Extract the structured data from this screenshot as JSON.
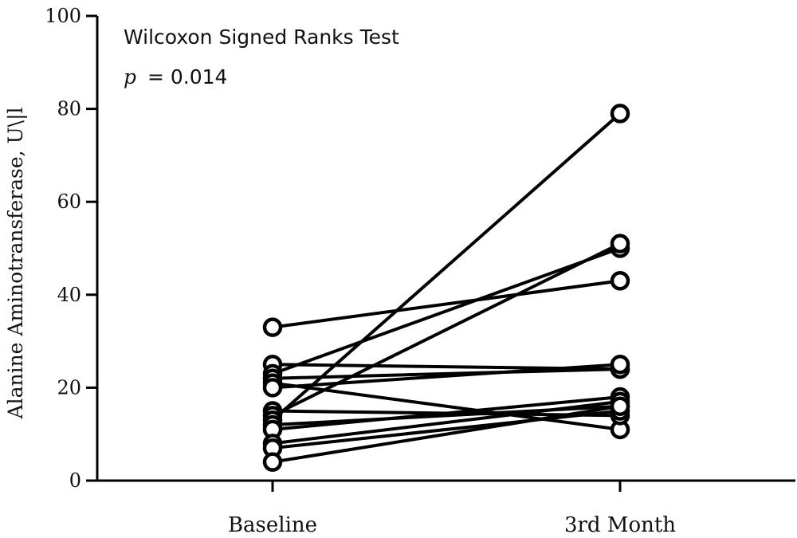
{
  "chart_data": {
    "type": "line",
    "categories": [
      "Baseline",
      "3rd Month"
    ],
    "ylabel": "Alanine Aminotransferase, U\\|l",
    "xlabel": "",
    "ylim": [
      0,
      100
    ],
    "yticks": [
      "0",
      "20",
      "40",
      "60",
      "80",
      "100"
    ],
    "annotation_title": "Wilcoxon Signed Ranks Test",
    "annotation_p_symbol": "p",
    "annotation_p_value": "= 0.014",
    "grid": false,
    "marker": "open-circle",
    "line_color": "#000000",
    "series": [
      {
        "values": [
          33,
          43
        ]
      },
      {
        "values": [
          25,
          24
        ]
      },
      {
        "values": [
          23,
          50
        ]
      },
      {
        "values": [
          22,
          24
        ]
      },
      {
        "values": [
          21,
          11
        ]
      },
      {
        "values": [
          20,
          25
        ]
      },
      {
        "values": [
          15,
          14
        ]
      },
      {
        "values": [
          14,
          51
        ]
      },
      {
        "values": [
          13,
          79
        ]
      },
      {
        "values": [
          12,
          16
        ]
      },
      {
        "values": [
          11,
          18
        ]
      },
      {
        "values": [
          8,
          17
        ]
      },
      {
        "values": [
          7,
          15
        ]
      },
      {
        "values": [
          4,
          16
        ]
      }
    ]
  }
}
